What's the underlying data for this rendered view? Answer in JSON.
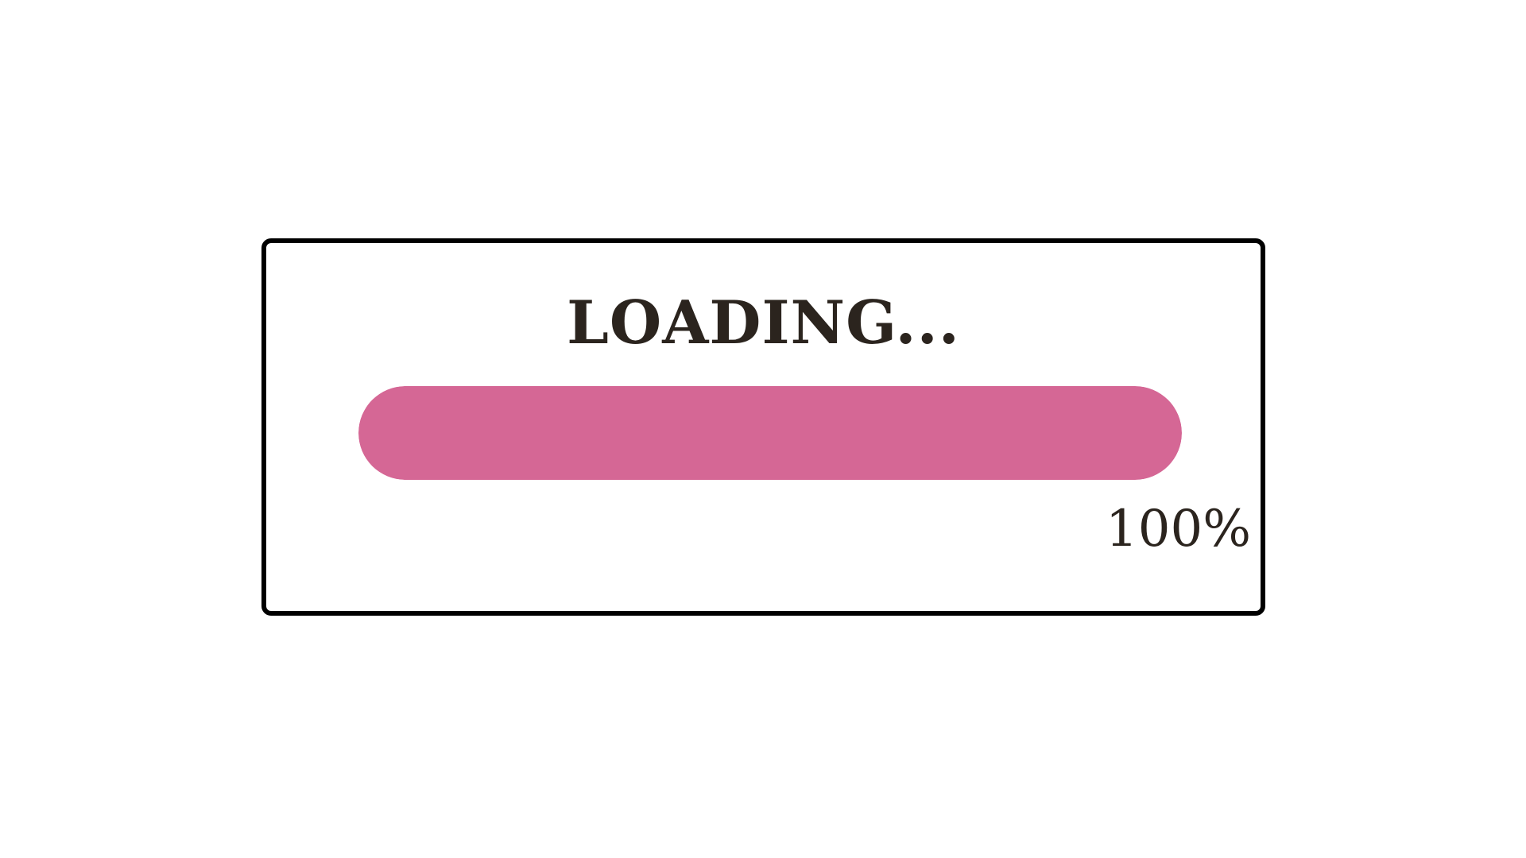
{
  "loader": {
    "title": "LOADING...",
    "progress_value": 1.0,
    "progress_label": "100%",
    "fill_color": "#d56795",
    "frame_color": "#000000",
    "text_color": "#2b241e"
  }
}
